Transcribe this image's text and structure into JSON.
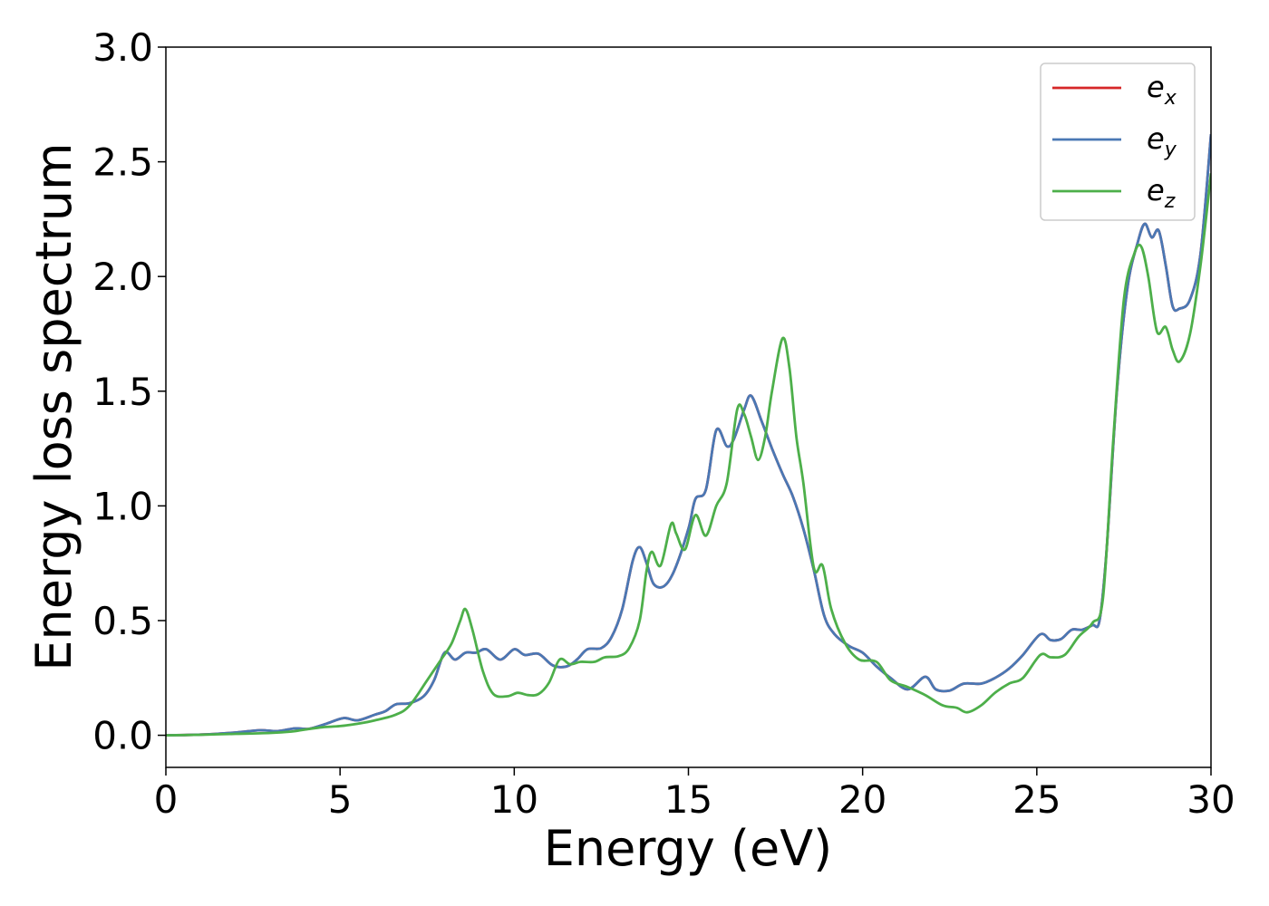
{
  "chart_data": {
    "type": "line",
    "xlabel": "Energy (eV)",
    "ylabel": "Energy loss spectrum",
    "xlim": [
      0,
      30
    ],
    "ylim": [
      -0.14,
      3.0
    ],
    "x_ticks": [
      0,
      5,
      10,
      15,
      20,
      25,
      30
    ],
    "y_ticks": [
      "0.0",
      "0.5",
      "1.0",
      "1.5",
      "2.0",
      "2.5",
      "3.0"
    ],
    "grid": false,
    "legend_position": "top-right",
    "series": [
      {
        "name": "e",
        "sub": "x",
        "color": "#d62728",
        "points": [
          [
            0,
            0
          ],
          [
            1,
            0.003
          ],
          [
            2,
            0.012
          ],
          [
            2.7,
            0.022
          ],
          [
            3.2,
            0.018
          ],
          [
            3.7,
            0.03
          ],
          [
            4.1,
            0.028
          ],
          [
            4.6,
            0.05
          ],
          [
            5.1,
            0.075
          ],
          [
            5.5,
            0.065
          ],
          [
            6,
            0.09
          ],
          [
            6.3,
            0.105
          ],
          [
            6.6,
            0.135
          ],
          [
            7,
            0.14
          ],
          [
            7.4,
            0.17
          ],
          [
            7.7,
            0.24
          ],
          [
            8,
            0.36
          ],
          [
            8.3,
            0.33
          ],
          [
            8.6,
            0.36
          ],
          [
            8.9,
            0.36
          ],
          [
            9.2,
            0.375
          ],
          [
            9.6,
            0.33
          ],
          [
            10,
            0.375
          ],
          [
            10.3,
            0.35
          ],
          [
            10.7,
            0.355
          ],
          [
            11.1,
            0.305
          ],
          [
            11.5,
            0.3
          ],
          [
            11.8,
            0.33
          ],
          [
            12.1,
            0.375
          ],
          [
            12.5,
            0.38
          ],
          [
            12.8,
            0.43
          ],
          [
            13.1,
            0.55
          ],
          [
            13.4,
            0.76
          ],
          [
            13.6,
            0.82
          ],
          [
            13.8,
            0.75
          ],
          [
            14,
            0.66
          ],
          [
            14.3,
            0.65
          ],
          [
            14.6,
            0.72
          ],
          [
            15,
            0.9
          ],
          [
            15.2,
            1.03
          ],
          [
            15.5,
            1.07
          ],
          [
            15.8,
            1.33
          ],
          [
            16.1,
            1.26
          ],
          [
            16.3,
            1.29
          ],
          [
            16.6,
            1.42
          ],
          [
            16.8,
            1.48
          ],
          [
            17.1,
            1.37
          ],
          [
            17.4,
            1.25
          ],
          [
            17.7,
            1.14
          ],
          [
            18,
            1.04
          ],
          [
            18.3,
            0.9
          ],
          [
            18.6,
            0.72
          ],
          [
            18.9,
            0.52
          ],
          [
            19.2,
            0.44
          ],
          [
            19.6,
            0.39
          ],
          [
            20,
            0.36
          ],
          [
            20.4,
            0.3
          ],
          [
            20.8,
            0.25
          ],
          [
            21.3,
            0.2
          ],
          [
            21.8,
            0.255
          ],
          [
            22.1,
            0.2
          ],
          [
            22.5,
            0.195
          ],
          [
            22.9,
            0.225
          ],
          [
            23.4,
            0.225
          ],
          [
            23.8,
            0.25
          ],
          [
            24.2,
            0.29
          ],
          [
            24.6,
            0.35
          ],
          [
            25.1,
            0.44
          ],
          [
            25.4,
            0.415
          ],
          [
            25.7,
            0.42
          ],
          [
            26,
            0.46
          ],
          [
            26.3,
            0.46
          ],
          [
            26.6,
            0.48
          ],
          [
            26.8,
            0.5
          ],
          [
            27,
            0.8
          ],
          [
            27.3,
            1.5
          ],
          [
            27.6,
            1.95
          ],
          [
            27.9,
            2.15
          ],
          [
            28.1,
            2.23
          ],
          [
            28.3,
            2.17
          ],
          [
            28.5,
            2.2
          ],
          [
            28.7,
            2.05
          ],
          [
            28.9,
            1.87
          ],
          [
            29.1,
            1.86
          ],
          [
            29.4,
            1.9
          ],
          [
            29.7,
            2.1
          ],
          [
            30,
            2.62
          ]
        ]
      },
      {
        "name": "e",
        "sub": "y",
        "color": "#4a78b4",
        "points": [
          [
            0,
            0
          ],
          [
            1,
            0.003
          ],
          [
            2,
            0.012
          ],
          [
            2.7,
            0.022
          ],
          [
            3.2,
            0.018
          ],
          [
            3.7,
            0.03
          ],
          [
            4.1,
            0.028
          ],
          [
            4.6,
            0.05
          ],
          [
            5.1,
            0.075
          ],
          [
            5.5,
            0.065
          ],
          [
            6,
            0.09
          ],
          [
            6.3,
            0.105
          ],
          [
            6.6,
            0.135
          ],
          [
            7,
            0.14
          ],
          [
            7.4,
            0.17
          ],
          [
            7.7,
            0.24
          ],
          [
            8,
            0.36
          ],
          [
            8.3,
            0.33
          ],
          [
            8.6,
            0.36
          ],
          [
            8.9,
            0.36
          ],
          [
            9.2,
            0.375
          ],
          [
            9.6,
            0.33
          ],
          [
            10,
            0.375
          ],
          [
            10.3,
            0.35
          ],
          [
            10.7,
            0.355
          ],
          [
            11.1,
            0.305
          ],
          [
            11.5,
            0.3
          ],
          [
            11.8,
            0.33
          ],
          [
            12.1,
            0.375
          ],
          [
            12.5,
            0.38
          ],
          [
            12.8,
            0.43
          ],
          [
            13.1,
            0.55
          ],
          [
            13.4,
            0.76
          ],
          [
            13.6,
            0.82
          ],
          [
            13.8,
            0.75
          ],
          [
            14,
            0.66
          ],
          [
            14.3,
            0.65
          ],
          [
            14.6,
            0.72
          ],
          [
            15,
            0.9
          ],
          [
            15.2,
            1.03
          ],
          [
            15.5,
            1.07
          ],
          [
            15.8,
            1.33
          ],
          [
            16.1,
            1.26
          ],
          [
            16.3,
            1.29
          ],
          [
            16.6,
            1.42
          ],
          [
            16.8,
            1.48
          ],
          [
            17.1,
            1.37
          ],
          [
            17.4,
            1.25
          ],
          [
            17.7,
            1.14
          ],
          [
            18,
            1.04
          ],
          [
            18.3,
            0.9
          ],
          [
            18.6,
            0.72
          ],
          [
            18.9,
            0.52
          ],
          [
            19.2,
            0.44
          ],
          [
            19.6,
            0.39
          ],
          [
            20,
            0.36
          ],
          [
            20.4,
            0.3
          ],
          [
            20.8,
            0.25
          ],
          [
            21.3,
            0.2
          ],
          [
            21.8,
            0.255
          ],
          [
            22.1,
            0.2
          ],
          [
            22.5,
            0.195
          ],
          [
            22.9,
            0.225
          ],
          [
            23.4,
            0.225
          ],
          [
            23.8,
            0.25
          ],
          [
            24.2,
            0.29
          ],
          [
            24.6,
            0.35
          ],
          [
            25.1,
            0.44
          ],
          [
            25.4,
            0.415
          ],
          [
            25.7,
            0.42
          ],
          [
            26,
            0.46
          ],
          [
            26.3,
            0.46
          ],
          [
            26.6,
            0.48
          ],
          [
            26.8,
            0.5
          ],
          [
            27,
            0.8
          ],
          [
            27.3,
            1.5
          ],
          [
            27.6,
            1.95
          ],
          [
            27.9,
            2.15
          ],
          [
            28.1,
            2.23
          ],
          [
            28.3,
            2.17
          ],
          [
            28.5,
            2.2
          ],
          [
            28.7,
            2.05
          ],
          [
            28.9,
            1.87
          ],
          [
            29.1,
            1.86
          ],
          [
            29.4,
            1.9
          ],
          [
            29.7,
            2.1
          ],
          [
            30,
            2.62
          ]
        ]
      },
      {
        "name": "e",
        "sub": "z",
        "color": "#4daf4a",
        "points": [
          [
            0,
            0
          ],
          [
            1,
            0.002
          ],
          [
            2,
            0.006
          ],
          [
            3,
            0.01
          ],
          [
            3.6,
            0.016
          ],
          [
            4,
            0.025
          ],
          [
            4.5,
            0.035
          ],
          [
            5,
            0.04
          ],
          [
            5.5,
            0.05
          ],
          [
            6,
            0.065
          ],
          [
            6.6,
            0.09
          ],
          [
            7,
            0.13
          ],
          [
            7.5,
            0.24
          ],
          [
            7.9,
            0.33
          ],
          [
            8.2,
            0.4
          ],
          [
            8.45,
            0.5
          ],
          [
            8.6,
            0.55
          ],
          [
            8.8,
            0.46
          ],
          [
            9.1,
            0.28
          ],
          [
            9.4,
            0.18
          ],
          [
            9.8,
            0.17
          ],
          [
            10.1,
            0.185
          ],
          [
            10.4,
            0.175
          ],
          [
            10.7,
            0.18
          ],
          [
            11,
            0.23
          ],
          [
            11.3,
            0.33
          ],
          [
            11.6,
            0.31
          ],
          [
            11.9,
            0.32
          ],
          [
            12.3,
            0.32
          ],
          [
            12.6,
            0.34
          ],
          [
            13,
            0.345
          ],
          [
            13.3,
            0.38
          ],
          [
            13.6,
            0.5
          ],
          [
            13.8,
            0.72
          ],
          [
            13.95,
            0.8
          ],
          [
            14.2,
            0.74
          ],
          [
            14.5,
            0.92
          ],
          [
            14.65,
            0.88
          ],
          [
            14.9,
            0.81
          ],
          [
            15.2,
            0.96
          ],
          [
            15.5,
            0.87
          ],
          [
            15.8,
            1
          ],
          [
            16.1,
            1.1
          ],
          [
            16.4,
            1.42
          ],
          [
            16.6,
            1.4
          ],
          [
            16.8,
            1.3
          ],
          [
            17,
            1.2
          ],
          [
            17.2,
            1.3
          ],
          [
            17.4,
            1.5
          ],
          [
            17.7,
            1.73
          ],
          [
            17.9,
            1.6
          ],
          [
            18.1,
            1.3
          ],
          [
            18.3,
            1.1
          ],
          [
            18.6,
            0.73
          ],
          [
            18.85,
            0.74
          ],
          [
            19.1,
            0.55
          ],
          [
            19.5,
            0.4
          ],
          [
            19.9,
            0.33
          ],
          [
            20.4,
            0.32
          ],
          [
            20.8,
            0.24
          ],
          [
            21.3,
            0.21
          ],
          [
            21.8,
            0.175
          ],
          [
            22.3,
            0.13
          ],
          [
            22.7,
            0.12
          ],
          [
            23,
            0.1
          ],
          [
            23.4,
            0.13
          ],
          [
            23.8,
            0.185
          ],
          [
            24.2,
            0.225
          ],
          [
            24.6,
            0.25
          ],
          [
            25.1,
            0.35
          ],
          [
            25.4,
            0.34
          ],
          [
            25.8,
            0.35
          ],
          [
            26.2,
            0.43
          ],
          [
            26.6,
            0.49
          ],
          [
            26.9,
            0.6
          ],
          [
            27.2,
            1.3
          ],
          [
            27.5,
            1.9
          ],
          [
            27.8,
            2.1
          ],
          [
            28,
            2.13
          ],
          [
            28.2,
            2.0
          ],
          [
            28.45,
            1.76
          ],
          [
            28.7,
            1.78
          ],
          [
            28.9,
            1.68
          ],
          [
            29.1,
            1.63
          ],
          [
            29.4,
            1.75
          ],
          [
            29.7,
            2.05
          ],
          [
            30,
            2.45
          ]
        ]
      }
    ]
  }
}
